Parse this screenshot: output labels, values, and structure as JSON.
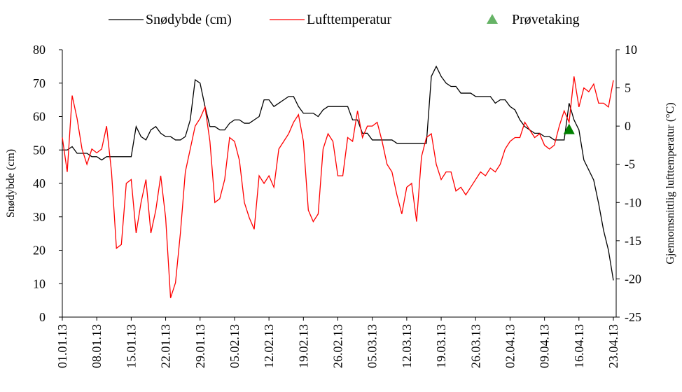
{
  "chart_data": {
    "type": "line",
    "y_label": "Snødybde (cm)",
    "y2_label": "Gjennomsnittlig lufttemperatur (°C)",
    "categories": [
      "01.01.13",
      null,
      null,
      null,
      null,
      null,
      null,
      "08.01.13",
      null,
      null,
      null,
      null,
      null,
      null,
      "15.01.13",
      null,
      null,
      null,
      null,
      null,
      null,
      "22.01.13",
      null,
      null,
      null,
      null,
      null,
      null,
      "29.01.13",
      null,
      null,
      null,
      null,
      null,
      null,
      "05.02.13",
      null,
      null,
      null,
      null,
      null,
      null,
      "12.02.13",
      null,
      null,
      null,
      null,
      null,
      null,
      "19.02.13",
      null,
      null,
      null,
      null,
      null,
      null,
      "26.02.13",
      null,
      null,
      null,
      null,
      null,
      null,
      "05.03.13",
      null,
      null,
      null,
      null,
      null,
      null,
      "12.03.13",
      null,
      null,
      null,
      null,
      null,
      null,
      "19.03.13",
      null,
      null,
      null,
      null,
      null,
      null,
      "26.03.13",
      null,
      null,
      null,
      null,
      null,
      null,
      "02.04.13",
      null,
      null,
      null,
      null,
      null,
      null,
      "09.04.13",
      null,
      null,
      null,
      null,
      null,
      null,
      "16.04.13",
      null,
      null,
      null,
      null,
      null,
      null,
      "23.04.13"
    ],
    "series": [
      {
        "name": "Snødybde (cm)",
        "color": "#000000",
        "axis": "y",
        "values": [
          50,
          50,
          51,
          49,
          49,
          49,
          48,
          48,
          47,
          48,
          48,
          48,
          48,
          48,
          48,
          57,
          54,
          53,
          56,
          57,
          55,
          54,
          54,
          53,
          53,
          54,
          59,
          71,
          70,
          63,
          57,
          57,
          56,
          56,
          58,
          59,
          59,
          58,
          58,
          59,
          60,
          65,
          65,
          63,
          64,
          65,
          66,
          66,
          63,
          61,
          61,
          61,
          60,
          62,
          63,
          63,
          63,
          63,
          63,
          59,
          59,
          55,
          55,
          53,
          53,
          53,
          53,
          53,
          52,
          52,
          52,
          52,
          52,
          52,
          52,
          72,
          75,
          72,
          70,
          69,
          69,
          67,
          67,
          67,
          66,
          66,
          66,
          66,
          64,
          65,
          65,
          63,
          62,
          59,
          57,
          56,
          55,
          55,
          54,
          54,
          53,
          53,
          53,
          64,
          59,
          56,
          47,
          44,
          41,
          34,
          26,
          20,
          11
        ]
      },
      {
        "name": "Lufttemperatur",
        "color": "#ff0000",
        "axis": "y2",
        "values": [
          -1.5,
          -6,
          4,
          1,
          -3,
          -5,
          -3,
          -3.5,
          -3,
          0,
          -6,
          -16,
          -15.5,
          -7.5,
          -7,
          -14,
          -10,
          -7,
          -14,
          -11,
          -6.5,
          -12,
          -22.5,
          -20.5,
          -14,
          -6,
          -3,
          0,
          1,
          2.5,
          -2,
          -10,
          -9.5,
          -7,
          -1.5,
          -2,
          -4.5,
          -10,
          -12,
          -13.5,
          -6.5,
          -7.5,
          -6.5,
          -8,
          -3,
          -2,
          -1,
          0.5,
          1.5,
          -2,
          -11,
          -12.5,
          -11.5,
          -3,
          -1,
          -2,
          -6.5,
          -6.5,
          -1.5,
          -2,
          2,
          -1.5,
          0,
          0,
          0.5,
          -2,
          -5,
          -6,
          -9,
          -11.5,
          -8,
          -7.5,
          -12.5,
          -4,
          -1.5,
          -1,
          -5,
          -7,
          -6,
          -6,
          -8.5,
          -8,
          -9,
          -8,
          -7,
          -6,
          -6.5,
          -5.5,
          -6,
          -5,
          -3,
          -2,
          -1.5,
          -1.5,
          0.5,
          -0.5,
          -1.5,
          -1,
          -2.5,
          -3,
          -2.5,
          0,
          2,
          0.5,
          6.5,
          2.5,
          5,
          4.5,
          5.5,
          3,
          3,
          2.5,
          6
        ]
      },
      {
        "name": "Prøvetaking",
        "color": "#008000",
        "axis": "y",
        "type": "scatter",
        "marker": "triangle",
        "values": [
          null,
          null,
          null,
          null,
          null,
          null,
          null,
          null,
          null,
          null,
          null,
          null,
          null,
          null,
          null,
          null,
          null,
          null,
          null,
          null,
          null,
          null,
          null,
          null,
          null,
          null,
          null,
          null,
          null,
          null,
          null,
          null,
          null,
          null,
          null,
          null,
          null,
          null,
          null,
          null,
          null,
          null,
          null,
          null,
          null,
          null,
          null,
          null,
          null,
          null,
          null,
          null,
          null,
          null,
          null,
          null,
          null,
          null,
          null,
          null,
          null,
          null,
          null,
          null,
          null,
          null,
          null,
          null,
          null,
          null,
          null,
          null,
          null,
          null,
          null,
          null,
          null,
          null,
          null,
          null,
          null,
          null,
          null,
          null,
          null,
          null,
          null,
          null,
          null,
          null,
          null,
          null,
          null,
          null,
          null,
          null,
          null,
          null,
          null,
          null,
          null,
          null,
          null,
          56,
          null,
          null,
          null,
          null,
          null,
          null,
          null,
          null,
          null
        ]
      }
    ],
    "ylim": [
      0,
      80
    ],
    "yticks": [
      0,
      10,
      20,
      30,
      40,
      50,
      60,
      70,
      80
    ],
    "y2lim": [
      -25,
      10
    ],
    "y2ticks": [
      -25,
      -20,
      -15,
      -10,
      -5,
      0,
      5,
      10
    ],
    "grid": false,
    "legend": "top"
  }
}
